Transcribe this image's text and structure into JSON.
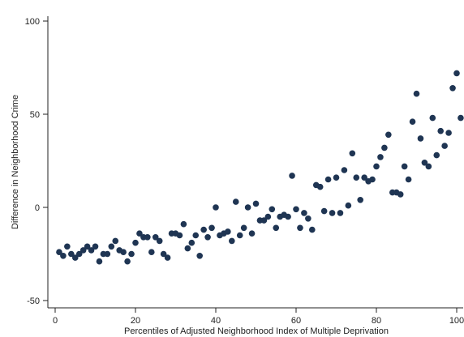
{
  "chart_data": {
    "type": "scatter",
    "title": "",
    "xlabel": "Percentiles of Adjusted Neighborhood Index of Multiple Deprivation",
    "ylabel": "Difference in Neighborhood Crime",
    "xlim": [
      -2,
      101
    ],
    "ylim": [
      -50,
      100
    ],
    "xticks": [
      0,
      20,
      40,
      60,
      80,
      100
    ],
    "yticks": [
      -50,
      0,
      50,
      100
    ],
    "grid": false,
    "marker_color": "#1f3553",
    "points": [
      [
        1,
        -24
      ],
      [
        2,
        -26
      ],
      [
        3,
        -21
      ],
      [
        4,
        -25
      ],
      [
        5,
        -27
      ],
      [
        6,
        -25
      ],
      [
        7,
        -23
      ],
      [
        8,
        -21
      ],
      [
        9,
        -23
      ],
      [
        10,
        -21
      ],
      [
        11,
        -29
      ],
      [
        12,
        -25
      ],
      [
        13,
        -25
      ],
      [
        14,
        -21
      ],
      [
        15,
        -18
      ],
      [
        16,
        -23
      ],
      [
        17,
        -24
      ],
      [
        18,
        -29
      ],
      [
        19,
        -25
      ],
      [
        20,
        -19
      ],
      [
        21,
        -14
      ],
      [
        22,
        -16
      ],
      [
        23,
        -16
      ],
      [
        24,
        -24
      ],
      [
        25,
        -16
      ],
      [
        26,
        -18
      ],
      [
        27,
        -25
      ],
      [
        28,
        -27
      ],
      [
        29,
        -14
      ],
      [
        30,
        -14
      ],
      [
        31,
        -15
      ],
      [
        32,
        -9
      ],
      [
        33,
        -22
      ],
      [
        34,
        -19
      ],
      [
        35,
        -15
      ],
      [
        36,
        -26
      ],
      [
        37,
        -12
      ],
      [
        38,
        -16
      ],
      [
        39,
        -11
      ],
      [
        40,
        0
      ],
      [
        41,
        -15
      ],
      [
        42,
        -14
      ],
      [
        43,
        -13
      ],
      [
        44,
        -18
      ],
      [
        45,
        3
      ],
      [
        46,
        -15
      ],
      [
        47,
        -11
      ],
      [
        48,
        0
      ],
      [
        49,
        -14
      ],
      [
        50,
        2
      ],
      [
        51,
        -7
      ],
      [
        52,
        -7
      ],
      [
        53,
        -5
      ],
      [
        54,
        -1
      ],
      [
        55,
        -11
      ],
      [
        56,
        -5
      ],
      [
        57,
        -4
      ],
      [
        58,
        -5
      ],
      [
        59,
        17
      ],
      [
        60,
        -1
      ],
      [
        61,
        -11
      ],
      [
        62,
        -3
      ],
      [
        63,
        -6
      ],
      [
        64,
        -12
      ],
      [
        65,
        12
      ],
      [
        66,
        11
      ],
      [
        67,
        -2
      ],
      [
        68,
        15
      ],
      [
        69,
        -3
      ],
      [
        70,
        16
      ],
      [
        71,
        -3
      ],
      [
        72,
        20
      ],
      [
        73,
        1
      ],
      [
        74,
        29
      ],
      [
        75,
        16
      ],
      [
        76,
        4
      ],
      [
        77,
        16
      ],
      [
        78,
        14
      ],
      [
        79,
        15
      ],
      [
        80,
        22
      ],
      [
        81,
        27
      ],
      [
        82,
        32
      ],
      [
        83,
        39
      ],
      [
        84,
        8
      ],
      [
        85,
        8
      ],
      [
        86,
        7
      ],
      [
        87,
        22
      ],
      [
        88,
        15
      ],
      [
        89,
        46
      ],
      [
        90,
        61
      ],
      [
        91,
        37
      ],
      [
        92,
        24
      ],
      [
        93,
        22
      ],
      [
        94,
        48
      ],
      [
        95,
        28
      ],
      [
        96,
        41
      ],
      [
        97,
        33
      ],
      [
        98,
        40
      ],
      [
        99,
        64
      ],
      [
        100,
        72
      ],
      [
        101,
        48
      ]
    ]
  }
}
